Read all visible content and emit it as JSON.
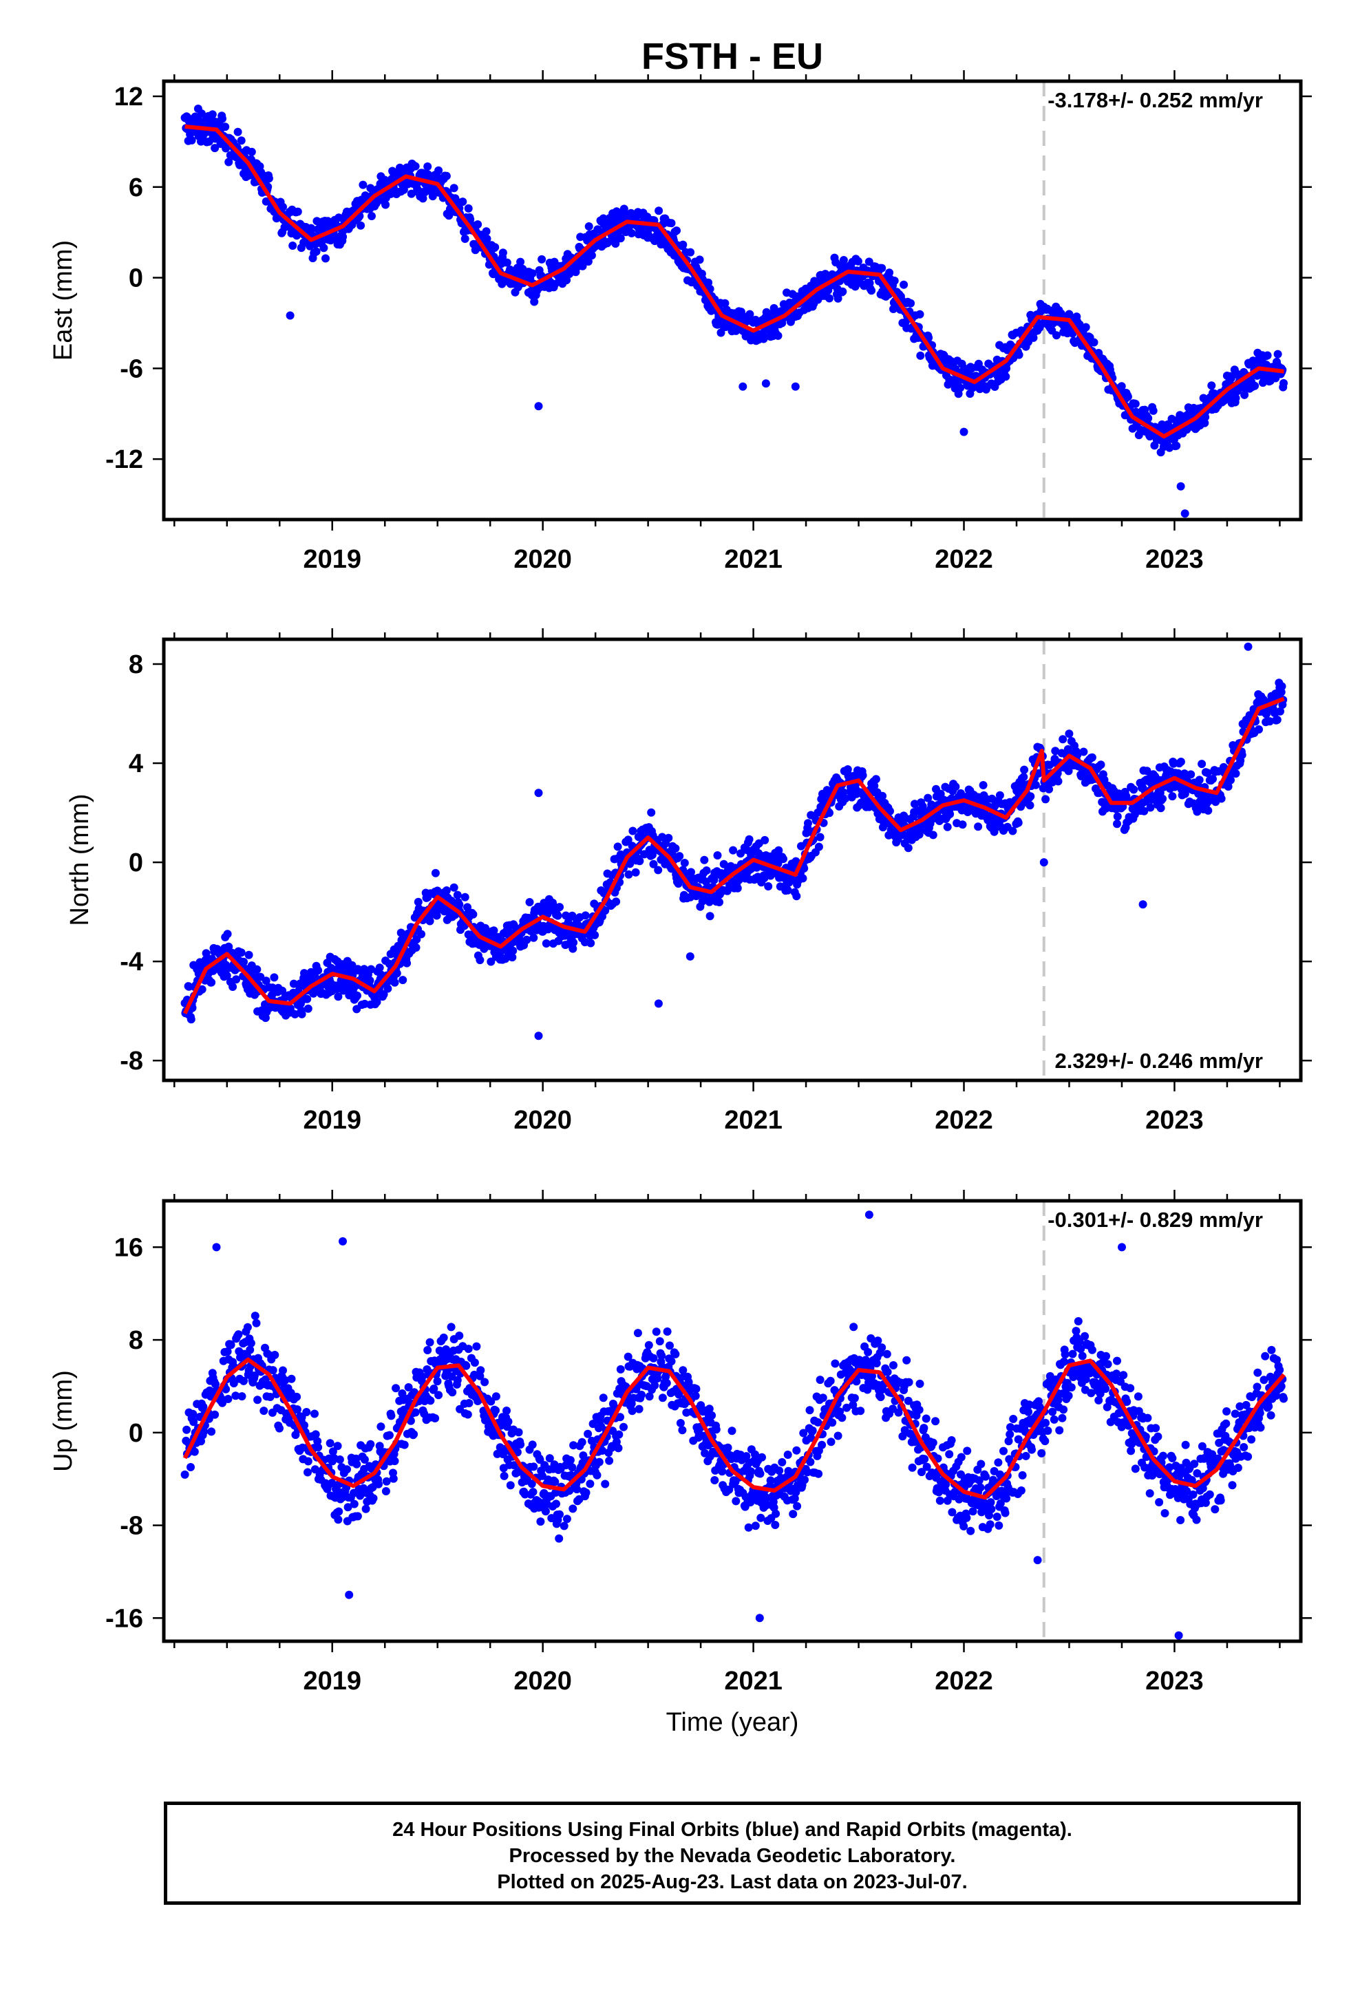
{
  "title": "FSTH - EU",
  "xlabel": "Time (year)",
  "footer": {
    "line1": "24 Hour Positions Using Final Orbits (blue) and Rapid Orbits (magenta).",
    "line2": "Processed by the Nevada Geodetic Laboratory.",
    "line3": "Plotted on 2025-Aug-23. Last data on 2023-Jul-07."
  },
  "colors": {
    "points": "#0000ff",
    "model": "#ff0000",
    "equipment_change": "#c8c8c8"
  },
  "chart_data": [
    {
      "type": "scatter",
      "panel": "east",
      "ylabel": "East (mm)",
      "rate_label": "-3.178+/- 0.252 mm/yr",
      "rate_position": "top-right",
      "xlim": [
        2018.2,
        2023.6
      ],
      "ylim": [
        -16,
        13
      ],
      "yticks": [
        "12",
        "6",
        "0",
        "-6",
        "-12"
      ],
      "xticks": [
        "2019",
        "2020",
        "2021",
        "2022",
        "2023"
      ],
      "equipment_change_line": 2022.38,
      "data_start": 2018.3,
      "data_end": 2023.52,
      "model_curve": {
        "x": [
          2018.3,
          2018.45,
          2018.6,
          2018.75,
          2018.9,
          2019.05,
          2019.2,
          2019.35,
          2019.5,
          2019.65,
          2019.8,
          2019.95,
          2020.1,
          2020.25,
          2020.4,
          2020.55,
          2020.7,
          2020.85,
          2021.0,
          2021.15,
          2021.3,
          2021.45,
          2021.6,
          2021.75,
          2021.9,
          2022.05,
          2022.2,
          2022.35,
          2022.5,
          2022.65,
          2022.8,
          2022.95,
          2023.1,
          2023.25,
          2023.4,
          2023.52
        ],
        "y": [
          10.0,
          9.8,
          7.6,
          4.3,
          2.5,
          3.4,
          5.4,
          6.7,
          6.2,
          3.4,
          0.3,
          -0.5,
          0.6,
          2.5,
          3.7,
          3.5,
          0.7,
          -2.5,
          -3.5,
          -2.5,
          -0.8,
          0.4,
          0.2,
          -2.8,
          -6.0,
          -6.9,
          -5.5,
          -2.6,
          -2.8,
          -5.8,
          -9.2,
          -10.5,
          -9.3,
          -7.4,
          -6.0,
          -6.2
        ]
      }
    },
    {
      "type": "scatter",
      "panel": "north",
      "ylabel": "North (mm)",
      "rate_label": "2.329+/- 0.246 mm/yr",
      "rate_position": "bottom-right",
      "xlim": [
        2018.2,
        2023.6
      ],
      "ylim": [
        -8.8,
        9.0
      ],
      "yticks": [
        "8",
        "4",
        "0",
        "-4",
        "-8"
      ],
      "xticks": [
        "2019",
        "2020",
        "2021",
        "2022",
        "2023"
      ],
      "equipment_change_line": 2022.38,
      "data_start": 2018.3,
      "data_end": 2023.52,
      "model_curve": {
        "x": [
          2018.3,
          2018.4,
          2018.5,
          2018.6,
          2018.7,
          2018.8,
          2018.9,
          2019.0,
          2019.1,
          2019.2,
          2019.3,
          2019.4,
          2019.5,
          2019.6,
          2019.7,
          2019.8,
          2019.9,
          2020.0,
          2020.1,
          2020.2,
          2020.3,
          2020.4,
          2020.5,
          2020.6,
          2020.7,
          2020.8,
          2020.9,
          2021.0,
          2021.1,
          2021.2,
          2021.3,
          2021.4,
          2021.5,
          2021.6,
          2021.7,
          2021.8,
          2021.9,
          2022.0,
          2022.1,
          2022.2,
          2022.3,
          2022.37,
          2022.38,
          2022.5,
          2022.6,
          2022.7,
          2022.8,
          2022.9,
          2023.0,
          2023.1,
          2023.2,
          2023.3,
          2023.4,
          2023.52
        ],
        "y": [
          -6.1,
          -4.3,
          -3.7,
          -4.6,
          -5.6,
          -5.7,
          -5.0,
          -4.5,
          -4.7,
          -5.2,
          -4.2,
          -2.5,
          -1.4,
          -2.0,
          -3.0,
          -3.4,
          -2.7,
          -2.2,
          -2.6,
          -2.8,
          -1.5,
          0.2,
          1.0,
          0.2,
          -1.0,
          -1.2,
          -0.5,
          0.1,
          -0.2,
          -0.5,
          1.4,
          3.1,
          3.3,
          2.2,
          1.3,
          1.7,
          2.3,
          2.5,
          2.2,
          1.8,
          2.9,
          4.5,
          3.3,
          4.3,
          3.8,
          2.4,
          2.4,
          3.0,
          3.4,
          3.0,
          2.8,
          4.5,
          6.2,
          6.6
        ]
      }
    },
    {
      "type": "scatter",
      "panel": "up",
      "ylabel": "Up (mm)",
      "rate_label": "-0.301+/- 0.829 mm/yr",
      "rate_position": "top-right",
      "xlim": [
        2018.2,
        2023.6
      ],
      "ylim": [
        -18,
        20
      ],
      "yticks": [
        "16",
        "8",
        "0",
        "-8",
        "-16"
      ],
      "xticks": [
        "2019",
        "2020",
        "2021",
        "2022",
        "2023"
      ],
      "equipment_change_line": 2022.38,
      "data_start": 2018.3,
      "data_end": 2023.52,
      "model_curve": {
        "x": [
          2018.3,
          2018.4,
          2018.5,
          2018.6,
          2018.7,
          2018.8,
          2018.9,
          2019.0,
          2019.1,
          2019.2,
          2019.3,
          2019.4,
          2019.5,
          2019.6,
          2019.7,
          2019.8,
          2019.9,
          2020.0,
          2020.1,
          2020.2,
          2020.3,
          2020.4,
          2020.5,
          2020.6,
          2020.7,
          2020.8,
          2020.9,
          2021.0,
          2021.1,
          2021.2,
          2021.3,
          2021.4,
          2021.5,
          2021.6,
          2021.7,
          2021.8,
          2021.9,
          2022.0,
          2022.1,
          2022.2,
          2022.3,
          2022.37,
          2022.38,
          2022.5,
          2022.6,
          2022.7,
          2022.8,
          2022.9,
          2023.0,
          2023.1,
          2023.2,
          2023.3,
          2023.4,
          2023.52
        ],
        "y": [
          -2.2,
          1.5,
          4.8,
          6.3,
          5.0,
          2.0,
          -1.5,
          -3.8,
          -4.6,
          -3.5,
          -0.8,
          3.0,
          5.6,
          5.8,
          3.4,
          -0.2,
          -3.0,
          -4.6,
          -4.9,
          -3.2,
          0.0,
          3.5,
          5.6,
          5.3,
          2.8,
          -0.6,
          -3.3,
          -4.7,
          -5.0,
          -3.8,
          -0.5,
          3.2,
          5.4,
          5.2,
          2.6,
          -0.9,
          -3.6,
          -5.1,
          -5.6,
          -3.8,
          -0.4,
          1.5,
          1.8,
          5.8,
          6.2,
          4.1,
          0.8,
          -2.3,
          -4.2,
          -4.6,
          -3.2,
          -0.4,
          2.5,
          5.0
        ]
      }
    }
  ]
}
